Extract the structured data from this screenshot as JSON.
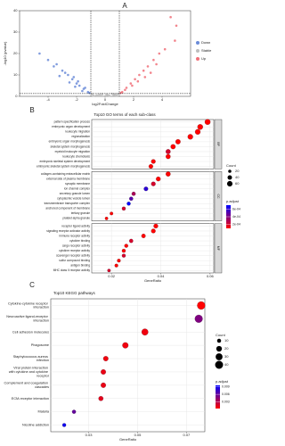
{
  "chart_data": [
    {
      "type": "scatter",
      "panel": "A",
      "xlabel": "log2FoldChange",
      "ylabel": "-log10 (pvalue)",
      "xlim": [
        -6,
        6
      ],
      "xticks": [
        -4,
        -2,
        0,
        2,
        4
      ],
      "ylim": [
        0,
        40
      ],
      "yticks": [
        0,
        10,
        20,
        30,
        40
      ],
      "vlines": [
        -1,
        1
      ],
      "hline": 1.3,
      "series": [
        {
          "name": "Down",
          "color": "#6b8bd8",
          "x": [
            -1.2,
            -1.5,
            -1.8,
            -2.0,
            -2.3,
            -2.6,
            -3.0,
            -3.4,
            -1.4,
            -1.9,
            -2.2,
            -2.8,
            -3.6,
            -4.0,
            -1.6,
            -2.5,
            -3.2,
            -1.1,
            -2.1,
            -4.6
          ],
          "values": [
            2,
            3.5,
            5,
            6,
            8,
            10,
            12,
            15,
            4,
            7,
            9,
            11,
            14,
            17,
            2.5,
            6.5,
            9.5,
            1.6,
            4.5,
            20
          ]
        },
        {
          "name": "Stable",
          "color": "#bdbdbd",
          "x": [
            -0.9,
            -0.6,
            -0.3,
            0,
            0.3,
            0.6,
            0.9,
            -0.8,
            -0.4,
            0.2,
            0.5,
            0.8,
            -0.2,
            0.1,
            -0.5,
            0.7
          ],
          "values": [
            1,
            0.5,
            0.2,
            0.1,
            0.3,
            0.7,
            1.1,
            0.3,
            0.9,
            0.6,
            1.2,
            0.4,
            1.0,
            0.8,
            0.2,
            0.9
          ]
        },
        {
          "name": "Up",
          "color": "#f07079",
          "x": [
            1.2,
            1.5,
            1.8,
            2.1,
            2.4,
            2.7,
            3.0,
            3.4,
            3.8,
            4.2,
            1.4,
            1.9,
            2.3,
            2.8,
            3.2,
            3.6,
            4.6,
            5.0,
            4.9,
            1.1
          ],
          "values": [
            2,
            4,
            6,
            8,
            10,
            12,
            14,
            17,
            20,
            22,
            3,
            5,
            7,
            9,
            11,
            15,
            37,
            33,
            26,
            1.6
          ]
        }
      ]
    },
    {
      "type": "dot",
      "panel": "B",
      "title": "Top10 GO terms of each sub-class",
      "xlabel": "GeneRatio",
      "xlim": [
        0.012,
        0.0615
      ],
      "xticks": [
        0.02,
        0.04,
        0.06
      ],
      "grid": true,
      "size_title": "Count",
      "size_lim": [
        0,
        65
      ],
      "size_ticks": [
        20,
        40,
        60
      ],
      "color_title": "p.adjust",
      "color_scale": [
        "#ff0000",
        "#0000ff"
      ],
      "color_lim": [
        0.0001,
        0.0007
      ],
      "color_ticks": [
        {
          "value": 0.0002,
          "label": "2e-04"
        },
        {
          "value": 0.0004,
          "label": "4e-04"
        },
        {
          "value": 0.0006,
          "label": "6e-04"
        }
      ],
      "facets": [
        {
          "name": "BP",
          "categories": [
            "pattern specification process",
            "embryonic organ development",
            "leukocyte migration",
            "regionalization",
            "embryonic organ morphogenesis",
            "skeletal system morphogenesis",
            "myeloid leukocyte migration",
            "leukocyte chemotaxis",
            "embryonic skeletal system development",
            "embryonic skeletal system morphogenesis"
          ],
          "x": [
            0.059,
            0.056,
            0.055,
            0.052,
            0.047,
            0.045,
            0.043,
            0.043,
            0.037,
            0.036
          ],
          "count": [
            62,
            59,
            57,
            55,
            49,
            47,
            45,
            44,
            38,
            37
          ],
          "p_adjust": [
            0.0001,
            0.0001,
            0.0001,
            0.0001,
            0.0001,
            0.0001,
            0.0002,
            0.0001,
            0.0001,
            0.0001
          ]
        },
        {
          "name": "CC",
          "categories": [
            "collagen-containing extracellular matrix",
            "external side of plasma membrane",
            "synaptic membrane",
            "ion channel complex",
            "secretory granule lumen",
            "cytoplasmic vesicle lumen",
            "transmembrane transporter complex",
            "anchored component of membrane",
            "tertiary granule",
            "platelet alpha granule"
          ],
          "x": [
            0.043,
            0.039,
            0.037,
            0.034,
            0.029,
            0.028,
            0.027,
            0.025,
            0.02,
            0.018
          ],
          "count": [
            45,
            41,
            38,
            36,
            30,
            29,
            28,
            26,
            21,
            19
          ],
          "p_adjust": [
            0.0001,
            0.0001,
            0.0002,
            0.0006,
            0.0003,
            0.0005,
            0.0007,
            0.0002,
            0.0001,
            0.0001
          ]
        },
        {
          "name": "MF",
          "categories": [
            "receptor ligand activity",
            "signaling receptor activator activity",
            "immune receptor activity",
            "cytokine binding",
            "cargo receptor activity",
            "cytokine receptor activity",
            "scavenger receptor activity",
            "sulfur compound binding",
            "antigen binding",
            "MHC class II receptor activity"
          ],
          "x": [
            0.038,
            0.037,
            0.033,
            0.028,
            0.026,
            0.025,
            0.025,
            0.023,
            0.022,
            0.019
          ],
          "count": [
            39,
            38,
            34,
            30,
            27,
            26,
            26,
            24,
            23,
            20
          ],
          "p_adjust": [
            0.0001,
            0.0001,
            0.0001,
            0.0002,
            0.0001,
            0.0001,
            0.0002,
            0.0001,
            0.0001,
            0.0002
          ]
        }
      ]
    },
    {
      "type": "dot",
      "panel": "C",
      "title": "Top10 KEGG pathways",
      "xlabel": "GeneRatio",
      "xlim": [
        0.0145,
        0.0775
      ],
      "xticks": [
        0.03,
        0.05,
        0.07
      ],
      "grid": true,
      "size_title": "Count",
      "size_lim": [
        0,
        42
      ],
      "size_ticks": [
        10,
        20,
        30,
        40
      ],
      "color_title": "p.adjust",
      "color_scale": [
        "#ff0000",
        "#0000ff"
      ],
      "color_lim": [
        0.0005,
        0.0095
      ],
      "color_ticks": [
        0.003,
        0.006,
        0.009
      ],
      "categories": [
        "Cytokine-cytokine receptor interaction",
        "Neuroactive ligand-receptor interaction",
        "Cell adhesion molecules",
        "Phagosome",
        "Staphylococcus aureus infection",
        "Viral protein interaction with cytokine and cytokine receptor",
        "Complement and coagulation cascades",
        "ECM-receptor interaction",
        "Malaria",
        "Nicotine addiction"
      ],
      "x": [
        0.076,
        0.075,
        0.053,
        0.045,
        0.037,
        0.036,
        0.036,
        0.035,
        0.024,
        0.02
      ],
      "count": [
        40,
        38,
        27,
        22,
        16,
        16,
        16,
        14,
        9,
        8
      ],
      "p_adjust": [
        0.0005,
        0.005,
        0.001,
        0.001,
        0.001,
        0.0012,
        0.0012,
        0.0015,
        0.006,
        0.009
      ]
    }
  ]
}
